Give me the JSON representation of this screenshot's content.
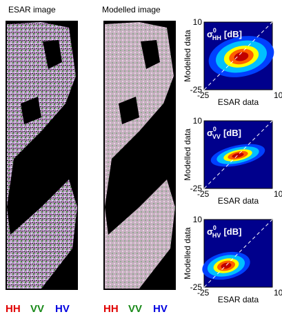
{
  "images": [
    {
      "title": "ESAR image",
      "legend": [
        "HH",
        "VV",
        "HV"
      ]
    },
    {
      "title": "Modelled image",
      "legend": [
        "HH",
        "VV",
        "HV"
      ]
    }
  ],
  "plots": [
    {
      "symbol": "σ",
      "sup": "0",
      "sub": "HH",
      "unit": "[dB]",
      "xlabel": "ESAR data",
      "ylabel": "Modelled data",
      "xticks": [
        -25,
        10
      ],
      "yticks": [
        -25,
        10
      ]
    },
    {
      "symbol": "σ",
      "sup": "0",
      "sub": "VV",
      "unit": "[dB]",
      "xlabel": "ESAR data",
      "ylabel": "Modelled data",
      "xticks": [
        -25,
        10
      ],
      "yticks": [
        -25,
        10
      ]
    },
    {
      "symbol": "σ",
      "sup": "0",
      "sub": "HV",
      "unit": "[dB]",
      "xlabel": "ESAR data",
      "ylabel": "Modelled data",
      "xticks": [
        -25,
        10
      ],
      "yticks": [
        -25,
        10
      ]
    }
  ]
}
